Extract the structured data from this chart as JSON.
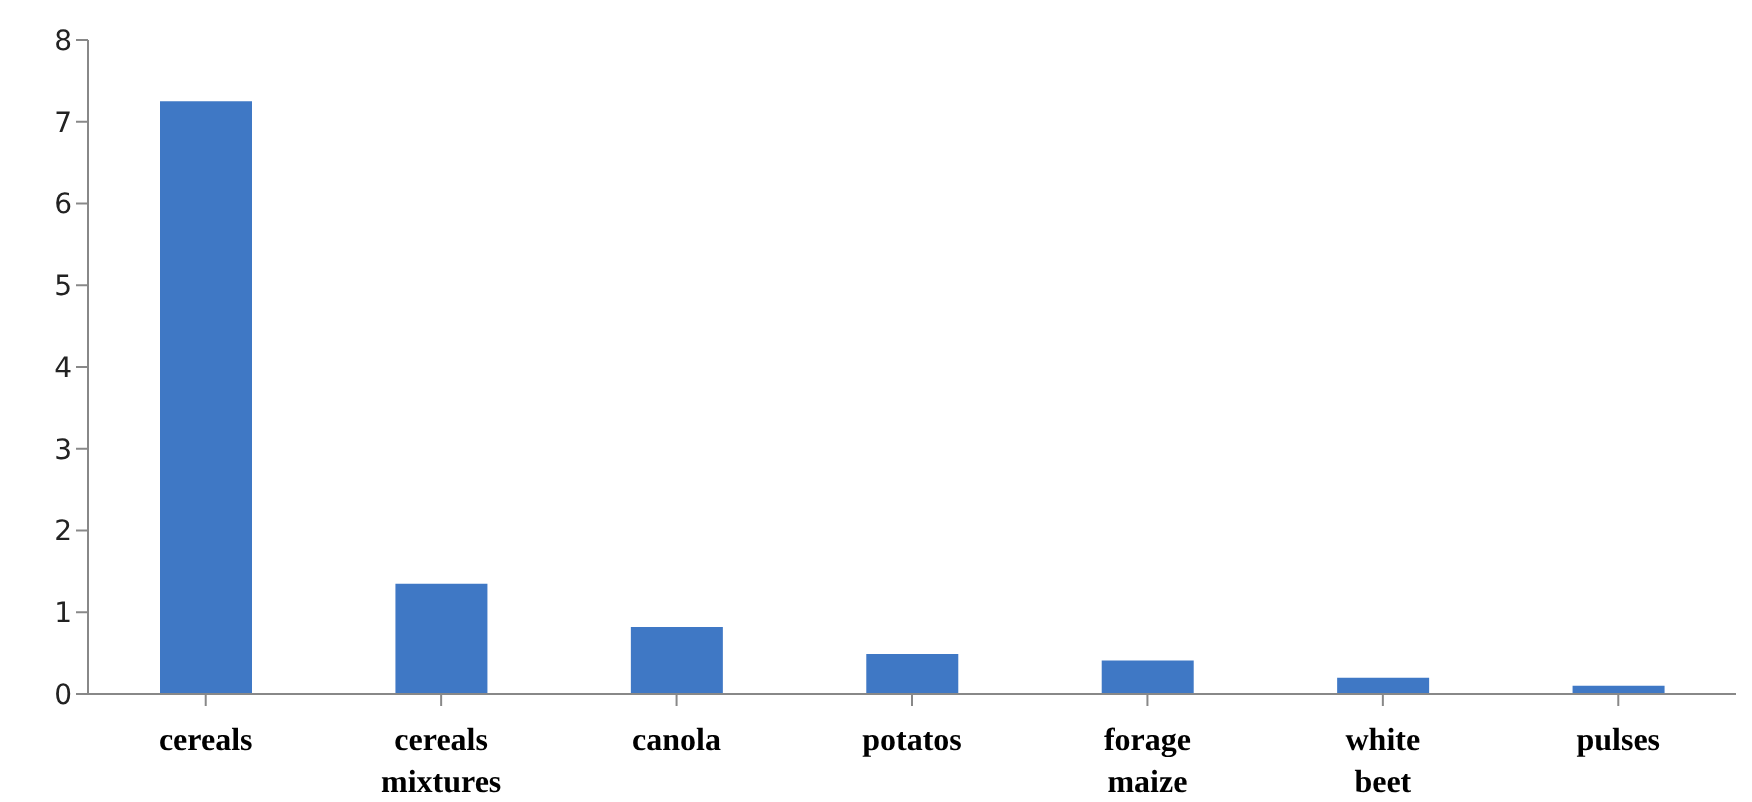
{
  "chart_data": {
    "type": "bar",
    "categories": [
      "cereals",
      "cereals mixtures",
      "canola",
      "potatos",
      "forage maize",
      "white beet",
      "pulses"
    ],
    "values": [
      7.25,
      1.35,
      0.82,
      0.49,
      0.41,
      0.2,
      0.1
    ],
    "color": "#3f78c5",
    "ylim": [
      0,
      8
    ],
    "yticks": [
      0,
      1,
      2,
      3,
      4,
      5,
      6,
      7,
      8
    ],
    "grid": false,
    "legend": false
  }
}
